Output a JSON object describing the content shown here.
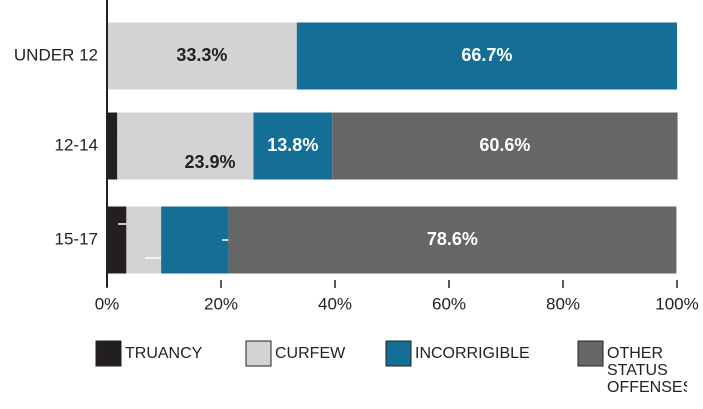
{
  "chart_data": {
    "type": "stacked-barh",
    "categories": [
      "UNDER 12",
      "12-14",
      "15-17"
    ],
    "series": [
      {
        "name": "TRUANCY",
        "color": "#231f20",
        "values": [
          0,
          1.8,
          3.4
        ],
        "value_labels": [
          null,
          "1.8%",
          "3.4%"
        ]
      },
      {
        "name": "CURFEW",
        "color": "#d3d3d3",
        "values": [
          33.3,
          23.9,
          6.1
        ],
        "value_labels": [
          "33.3%",
          "23.9%",
          "6.1%"
        ]
      },
      {
        "name": "INCORRIGIBLE",
        "color": "#156e96",
        "values": [
          66.7,
          13.8,
          11.8
        ],
        "value_labels": [
          "66.7%",
          "13.8%",
          "11.8%"
        ]
      },
      {
        "name": "OTHER STATUS OFFENSES",
        "color": "#666666",
        "values": [
          0,
          60.6,
          78.6
        ],
        "value_labels": [
          null,
          "60.6%",
          "78.6%"
        ]
      }
    ],
    "xlim": [
      0,
      100
    ],
    "xticks": [
      {
        "value": 0,
        "label": "0%"
      },
      {
        "value": 20,
        "label": "20%"
      },
      {
        "value": 40,
        "label": "40%"
      },
      {
        "value": 60,
        "label": "60%"
      },
      {
        "value": 80,
        "label": "80%"
      },
      {
        "value": 100,
        "label": "100%"
      }
    ],
    "legend": "bottom"
  }
}
